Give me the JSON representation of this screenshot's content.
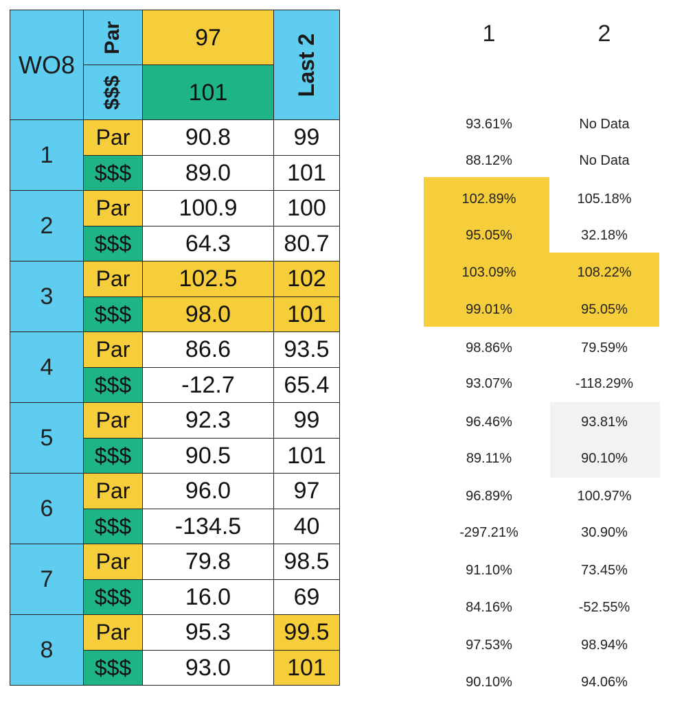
{
  "header": {
    "label": "WO8",
    "par_label": "Par",
    "money_label": "$$$",
    "par_value": "97",
    "money_value": "101",
    "last_label": "Last 2"
  },
  "rows": [
    {
      "num": "1",
      "par": "Par",
      "money": "$$$",
      "par_value": "90.8",
      "money_value": "89.0",
      "par_last": "99",
      "money_last": "101"
    },
    {
      "num": "2",
      "par": "Par",
      "money": "$$$",
      "par_value": "100.9",
      "money_value": "64.3",
      "par_last": "100",
      "money_last": "80.7"
    },
    {
      "num": "3",
      "par": "Par",
      "money": "$$$",
      "par_value": "102.5",
      "money_value": "98.0",
      "par_last": "102",
      "money_last": "101"
    },
    {
      "num": "4",
      "par": "Par",
      "money": "$$$",
      "par_value": "86.6",
      "money_value": "-12.7",
      "par_last": "93.5",
      "money_last": "65.4"
    },
    {
      "num": "5",
      "par": "Par",
      "money": "$$$",
      "par_value": "92.3",
      "money_value": "90.5",
      "par_last": "99",
      "money_last": "101"
    },
    {
      "num": "6",
      "par": "Par",
      "money": "$$$",
      "par_value": "96.0",
      "money_value": "-134.5",
      "par_last": "97",
      "money_last": "40"
    },
    {
      "num": "7",
      "par": "Par",
      "money": "$$$",
      "par_value": "79.8",
      "money_value": "16.0",
      "par_last": "98.5",
      "money_last": "69"
    },
    {
      "num": "8",
      "par": "Par",
      "money": "$$$",
      "par_value": "95.3",
      "money_value": "93.0",
      "par_last": "99.5",
      "money_last": "101"
    }
  ],
  "percent_grid": {
    "col_headers": [
      "1",
      "2"
    ],
    "col1": [
      "93.61%",
      "88.12%",
      "102.89%",
      "95.05%",
      "103.09%",
      "99.01%",
      "98.86%",
      "93.07%",
      "96.46%",
      "89.11%",
      "96.89%",
      "-297.21%",
      "91.10%",
      "84.16%",
      "97.53%",
      "90.10%"
    ],
    "col2": [
      "No Data",
      "No Data",
      "105.18%",
      "32.18%",
      "108.22%",
      "95.05%",
      "79.59%",
      "-118.29%",
      "93.81%",
      "90.10%",
      "100.97%",
      "30.90%",
      "73.45%",
      "-52.55%",
      "98.94%",
      "94.06%"
    ]
  },
  "colors": {
    "blue": "#5ecdf0",
    "gold": "#f6cd3b",
    "green": "#1fb487"
  }
}
